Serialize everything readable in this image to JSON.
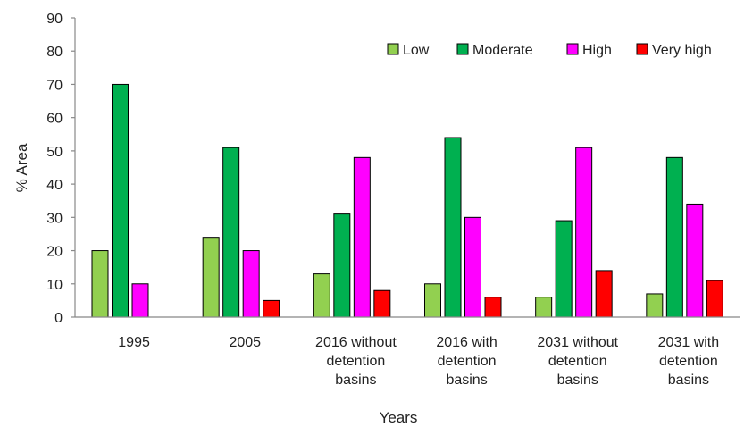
{
  "chart_data": {
    "type": "bar",
    "title": "",
    "xlabel": "Years",
    "ylabel": "% Area",
    "ylim": [
      0,
      90
    ],
    "yticks": [
      0,
      10,
      20,
      30,
      40,
      50,
      60,
      70,
      80,
      90
    ],
    "categories": [
      [
        "1995"
      ],
      [
        "2005"
      ],
      [
        "2016 without",
        "detention",
        "basins"
      ],
      [
        "2016 with",
        "detention",
        "basins"
      ],
      [
        "2031 without",
        "detention",
        "basins"
      ],
      [
        "2031 with",
        "detention",
        "basins"
      ]
    ],
    "series": [
      {
        "name": "Low",
        "color": "#92d050",
        "values": [
          20,
          24,
          13,
          10,
          6,
          7
        ]
      },
      {
        "name": "Moderate",
        "color": "#00b050",
        "values": [
          70,
          51,
          31,
          54,
          29,
          48
        ]
      },
      {
        "name": "High",
        "color": "#ff00ff",
        "values": [
          10,
          20,
          48,
          30,
          51,
          34
        ]
      },
      {
        "name": "Very high",
        "color": "#ff0000",
        "values": [
          0,
          5,
          8,
          6,
          14,
          11
        ]
      }
    ],
    "grid": false,
    "legend_position": "top-right"
  }
}
